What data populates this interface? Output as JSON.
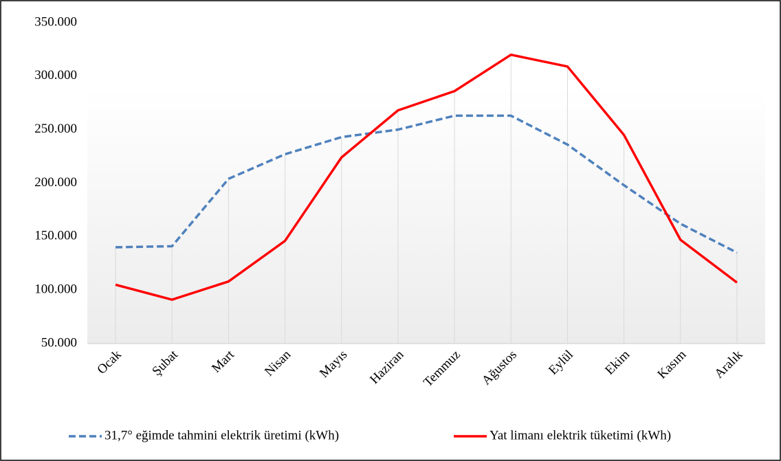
{
  "chart_data": {
    "type": "line",
    "categories": [
      "Ocak",
      "Şubat",
      "Mart",
      "Nisan",
      "Mayıs",
      "Haziran",
      "Temmuz",
      "Ağustos",
      "Eylül",
      "Ekim",
      "Kasım",
      "Aralık"
    ],
    "series": [
      {
        "name": "31,7° eğimde tahmini elektrik üretimi (kWh)",
        "color": "#4f81bd",
        "dashed": true,
        "values": [
          140000,
          141000,
          204000,
          227000,
          243000,
          250000,
          263000,
          263000,
          236000,
          198000,
          162000,
          135000
        ]
      },
      {
        "name": "Yat limanı elektrik tüketimi (kWh)",
        "color": "#ff0000",
        "dashed": false,
        "values": [
          105000,
          91000,
          108000,
          146000,
          224000,
          268000,
          286000,
          320000,
          309000,
          245000,
          147000,
          107000
        ]
      }
    ],
    "ylim": [
      50000,
      350000
    ],
    "yticks": [
      {
        "value": 50000,
        "label": "50.000"
      },
      {
        "value": 100000,
        "label": "100.000"
      },
      {
        "value": 150000,
        "label": "150.000"
      },
      {
        "value": 200000,
        "label": "200.000"
      },
      {
        "value": 250000,
        "label": "250.000"
      },
      {
        "value": 300000,
        "label": "300.000"
      },
      {
        "value": 350000,
        "label": "350.000"
      }
    ],
    "legend": "bottom"
  }
}
